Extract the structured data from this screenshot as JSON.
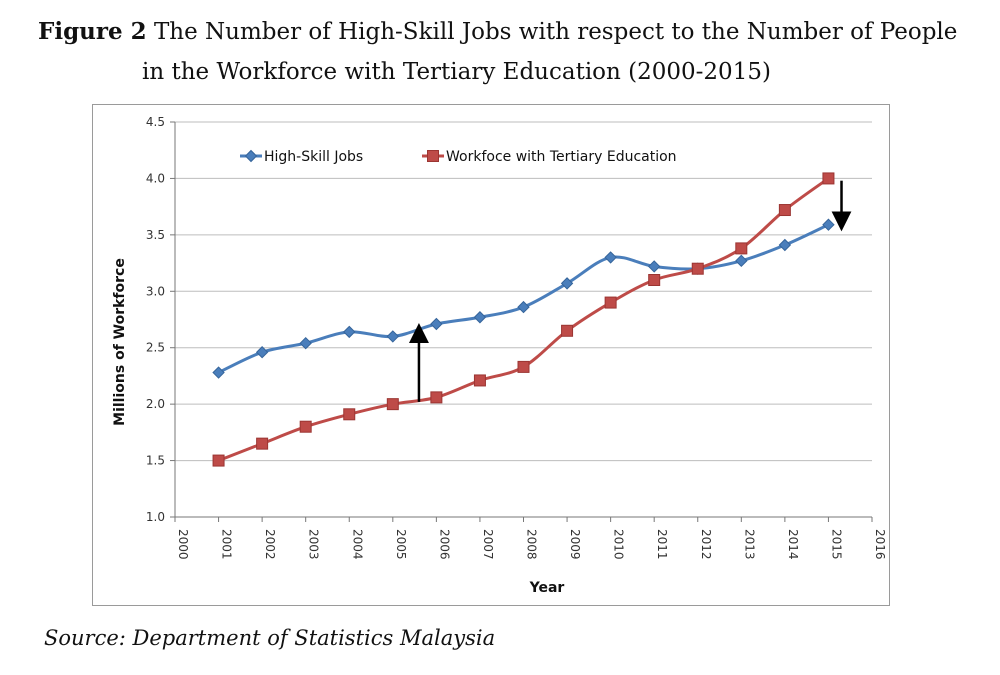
{
  "figure": {
    "label": "Figure 2",
    "title_line1": "The Number of High-Skill Jobs with respect to the Number of People",
    "title_line2": "in the Workforce with Tertiary Education (2000-2015)"
  },
  "source": "Source: Department of Statistics Malaysia",
  "chart_data": {
    "type": "line",
    "xlabel": "Year",
    "ylabel": "Millions of Workforce",
    "xlim": [
      2000,
      2016
    ],
    "ylim": [
      1.0,
      4.5
    ],
    "x_ticks": [
      2000,
      2001,
      2002,
      2003,
      2004,
      2005,
      2006,
      2007,
      2008,
      2009,
      2010,
      2011,
      2012,
      2013,
      2014,
      2015,
      2016
    ],
    "y_ticks": [
      "1.0",
      "1.5",
      "2.0",
      "2.5",
      "3.0",
      "3.5",
      "4.0",
      "4.5"
    ],
    "grid": "horizontal",
    "legend_position": "top",
    "series": [
      {
        "name": "High-Skill Jobs",
        "color": "#4a7ebb",
        "marker": "diamond",
        "x": [
          2001,
          2002,
          2003,
          2004,
          2005,
          2006,
          2007,
          2008,
          2009,
          2010,
          2011,
          2012,
          2013,
          2014,
          2015
        ],
        "values": [
          2.28,
          2.46,
          2.54,
          2.64,
          2.6,
          2.71,
          2.77,
          2.86,
          3.07,
          3.3,
          3.22,
          3.2,
          3.27,
          3.41,
          3.59
        ]
      },
      {
        "name": "Workfoce with Tertiary Education",
        "color": "#be4b48",
        "marker": "square",
        "x": [
          2001,
          2002,
          2003,
          2004,
          2005,
          2006,
          2007,
          2008,
          2009,
          2010,
          2011,
          2012,
          2013,
          2014,
          2015
        ],
        "values": [
          1.5,
          1.65,
          1.8,
          1.91,
          2.0,
          2.06,
          2.21,
          2.33,
          2.65,
          2.9,
          3.1,
          3.2,
          3.38,
          3.72,
          4.0
        ]
      }
    ],
    "annotations": [
      {
        "type": "arrow",
        "x": 2005.6,
        "from": 2.02,
        "to": 2.63
      },
      {
        "type": "arrow",
        "x": 2015.3,
        "from": 3.98,
        "to": 3.62
      }
    ]
  }
}
